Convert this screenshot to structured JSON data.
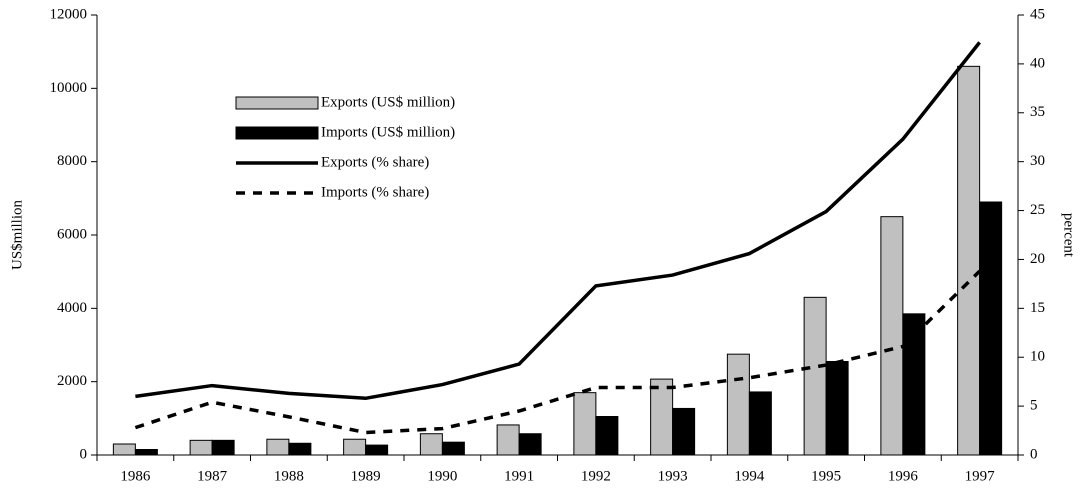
{
  "chart_data": {
    "type": "combo",
    "y_label": "US$million",
    "y2_label": "percent",
    "categories": [
      "1986",
      "1987",
      "1988",
      "1989",
      "1990",
      "1991",
      "1992",
      "1993",
      "1994",
      "1995",
      "1996",
      "1997"
    ],
    "series": [
      {
        "name": "Exports (US$ million)",
        "type": "bar",
        "axis": "y",
        "color": "#c0c0c0",
        "values": [
          300,
          400,
          430,
          430,
          580,
          820,
          1700,
          2070,
          2750,
          4300,
          6500,
          10600
        ]
      },
      {
        "name": "Imports (US$ million)",
        "type": "bar",
        "axis": "y",
        "color": "#000000",
        "values": [
          150,
          400,
          320,
          270,
          350,
          580,
          1050,
          1270,
          1720,
          2550,
          3850,
          6900
        ]
      },
      {
        "name": "Exports (% share)",
        "type": "line",
        "axis": "y2",
        "color": "#000000",
        "line_style": "solid",
        "values": [
          6.0,
          7.1,
          6.3,
          5.8,
          7.2,
          9.3,
          17.3,
          18.4,
          20.6,
          24.9,
          32.3,
          42.2
        ]
      },
      {
        "name": "Imports (% share)",
        "type": "line",
        "axis": "y2",
        "color": "#000000",
        "line_style": "dashed",
        "values": [
          2.8,
          5.4,
          3.9,
          2.3,
          2.7,
          4.5,
          6.9,
          6.9,
          7.9,
          9.2,
          11.1,
          18.8
        ]
      }
    ],
    "ylim": [
      0,
      12000
    ],
    "yticks": [
      0,
      2000,
      4000,
      6000,
      8000,
      10000,
      12000
    ],
    "y2lim": [
      0,
      45
    ],
    "y2ticks": [
      0,
      5,
      10,
      15,
      20,
      25,
      30,
      35,
      40,
      45
    ],
    "legend": "upper left",
    "grid": false
  }
}
